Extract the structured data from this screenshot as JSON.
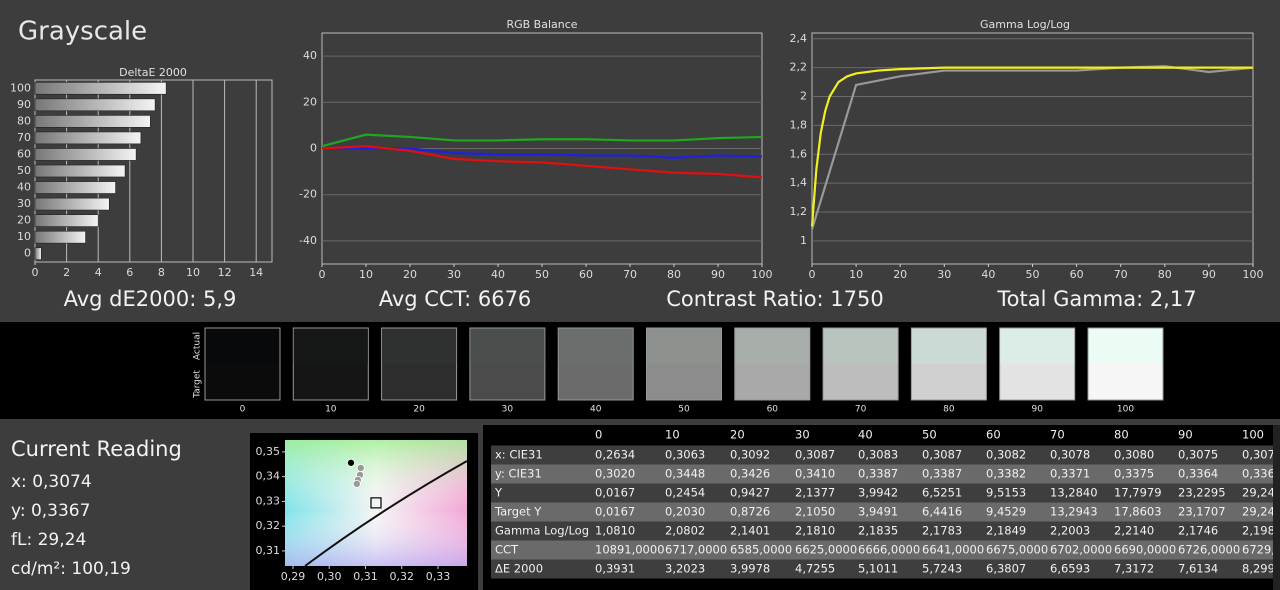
{
  "header": {
    "title": "Grayscale"
  },
  "chart_data": [
    {
      "type": "bar",
      "title": "DeltaE 2000",
      "categories": [
        "0",
        "10",
        "20",
        "30",
        "40",
        "50",
        "60",
        "70",
        "80",
        "90",
        "100"
      ],
      "values": [
        0.4,
        3.2,
        4.0,
        4.7,
        5.1,
        5.7,
        6.4,
        6.7,
        7.3,
        7.6,
        8.3
      ],
      "xlim": [
        0,
        15
      ],
      "xticks": [
        0,
        2,
        4,
        6,
        8,
        10,
        12,
        14
      ],
      "grid": true
    },
    {
      "type": "line",
      "title": "RGB Balance",
      "x": [
        0,
        10,
        20,
        30,
        40,
        50,
        60,
        70,
        80,
        90,
        100
      ],
      "series": [
        {
          "color": "#1fa81f",
          "values": [
            1,
            6,
            5,
            3.5,
            3.5,
            4,
            4,
            3.5,
            3.5,
            4.5,
            5
          ]
        },
        {
          "color": "#2020e0",
          "values": [
            0,
            0,
            0,
            -2,
            -2.5,
            -2.5,
            -3,
            -3,
            -4,
            -3,
            -3.5
          ]
        },
        {
          "color": "#e01010",
          "values": [
            0,
            1,
            -1,
            -4.5,
            -5.5,
            -6,
            -7.5,
            -9,
            -10.5,
            -11,
            -12.5
          ]
        }
      ],
      "xlim": [
        0,
        100
      ],
      "xticks": [
        0,
        10,
        20,
        30,
        40,
        50,
        60,
        70,
        80,
        90,
        100
      ],
      "ylim": [
        -50,
        50
      ],
      "yticks": [
        -40,
        -20,
        0,
        20,
        40
      ],
      "grid": true
    },
    {
      "type": "line",
      "title": "Gamma Log/Log",
      "series": [
        {
          "color": "#999999",
          "x": [
            0,
            10,
            20,
            30,
            40,
            50,
            60,
            70,
            80,
            90,
            100
          ],
          "values": [
            1.08,
            2.08,
            2.14,
            2.18,
            2.18,
            2.18,
            2.18,
            2.2,
            2.21,
            2.17,
            2.2
          ]
        },
        {
          "color": "#f0f020",
          "x": [
            0,
            1,
            2,
            3,
            4,
            5,
            6,
            8,
            10,
            15,
            20,
            30,
            40,
            50,
            60,
            70,
            80,
            90,
            100
          ],
          "values": [
            1.1,
            1.5,
            1.75,
            1.9,
            2.0,
            2.05,
            2.1,
            2.14,
            2.16,
            2.18,
            2.19,
            2.2,
            2.2,
            2.2,
            2.2,
            2.2,
            2.2,
            2.2,
            2.2
          ]
        }
      ],
      "xlim": [
        0,
        100
      ],
      "xticks": [
        0,
        10,
        20,
        30,
        40,
        50,
        60,
        70,
        80,
        90,
        100
      ],
      "ylim": [
        0.84,
        2.44
      ],
      "yticks": [
        1,
        {
          "value": 1.2,
          "label": "1,2"
        },
        {
          "value": 1.4,
          "label": "1,4"
        },
        {
          "value": 1.6,
          "label": "1,6"
        },
        {
          "value": 1.8,
          "label": "1,8"
        },
        2,
        {
          "value": 2.2,
          "label": "2,2"
        },
        {
          "value": 2.4,
          "label": "2,4"
        }
      ],
      "grid": true
    },
    {
      "type": "scatter",
      "series": [
        {
          "color": "#000000",
          "marker": "circle",
          "x": [
            0.306
          ],
          "values": [
            0.3456
          ]
        },
        {
          "color": "#9a9a9a",
          "marker": "circle",
          "x": [
            0.3087,
            0.3085,
            0.3079,
            0.3076
          ],
          "values": [
            0.3435,
            0.3407,
            0.3387,
            0.3371
          ]
        },
        {
          "color": "#000000",
          "marker": "square",
          "x": [
            0.3129
          ],
          "values": [
            0.3294
          ]
        }
      ],
      "xlim": [
        0.2878,
        0.338
      ],
      "xticks": [
        {
          "value": 0.29,
          "label": "0,29"
        },
        {
          "value": 0.3,
          "label": "0,30"
        },
        {
          "value": 0.31,
          "label": "0,31"
        },
        {
          "value": 0.32,
          "label": "0,32"
        },
        {
          "value": 0.33,
          "label": "0,33"
        }
      ],
      "ylim": [
        0.3039,
        0.3548
      ],
      "yticks": [
        {
          "value": 0.31,
          "label": "0,31"
        },
        {
          "value": 0.32,
          "label": "0,32"
        },
        {
          "value": 0.33,
          "label": "0,33"
        },
        {
          "value": 0.34,
          "label": "0,34"
        },
        {
          "value": 0.35,
          "label": "0,35"
        }
      ]
    }
  ],
  "summary": [
    "Avg dE2000: 5,9",
    "Avg CCT: 6676",
    "Contrast Ratio: 1750",
    "Total Gamma: 2,17"
  ],
  "swatches": {
    "actual_label": "Actual",
    "target_label": "Target",
    "items": [
      {
        "label": "0",
        "actual": "#08090b",
        "target": "#0b0b0b"
      },
      {
        "label": "10",
        "actual": "#151816",
        "target": "#151515"
      },
      {
        "label": "20",
        "actual": "#2e3130",
        "target": "#2d2d2d"
      },
      {
        "label": "30",
        "actual": "#4a4e4c",
        "target": "#4b4b4b"
      },
      {
        "label": "40",
        "actual": "#6a6e6c",
        "target": "#6b6b6b"
      },
      {
        "label": "50",
        "actual": "#8d928f",
        "target": "#8c8c8c"
      },
      {
        "label": "60",
        "actual": "#a8afab",
        "target": "#a9a9a9"
      },
      {
        "label": "70",
        "actual": "#b9c4bf",
        "target": "#bdbdbd"
      },
      {
        "label": "80",
        "actual": "#cbdad4",
        "target": "#d0d0d0"
      },
      {
        "label": "90",
        "actual": "#dcece6",
        "target": "#e3e3e3"
      },
      {
        "label": "100",
        "actual": "#ecfcf5",
        "target": "#f6f6f6"
      }
    ]
  },
  "reading": {
    "title": "Current Reading",
    "lines": [
      "x: 0,3074",
      "y: 0,3367",
      "fL: 29,24",
      "cd/m²: 100,19"
    ]
  },
  "table": {
    "columns": [
      "0",
      "10",
      "20",
      "30",
      "40",
      "50",
      "60",
      "70",
      "80",
      "90",
      "100"
    ],
    "rows": [
      [
        "x: CIE31",
        "0,2634",
        "0,3063",
        "0,3092",
        "0,3087",
        "0,3083",
        "0,3087",
        "0,3082",
        "0,3078",
        "0,3080",
        "0,3075",
        "0,307"
      ],
      [
        "y: CIE31",
        "0,3020",
        "0,3448",
        "0,3426",
        "0,3410",
        "0,3387",
        "0,3387",
        "0,3382",
        "0,3371",
        "0,3375",
        "0,3364",
        "0,336"
      ],
      [
        "Y",
        "0,0167",
        "0,2454",
        "0,9427",
        "2,1377",
        "3,9942",
        "6,5251",
        "9,5153",
        "13,2840",
        "17,7979",
        "23,2295",
        "29,24"
      ],
      [
        "Target Y",
        "0,0167",
        "0,2030",
        "0,8726",
        "2,1050",
        "3,9491",
        "6,4416",
        "9,4529",
        "13,2943",
        "17,8603",
        "23,1707",
        "29,24"
      ],
      [
        "Gamma Log/Log",
        "1,0810",
        "2,0802",
        "2,1401",
        "2,1810",
        "2,1835",
        "2,1783",
        "2,1849",
        "2,2003",
        "2,2140",
        "2,1746",
        "2,198"
      ],
      [
        "CCT",
        "10891,0000",
        "6717,0000",
        "6585,0000",
        "6625,0000",
        "6666,0000",
        "6641,0000",
        "6675,0000",
        "6702,0000",
        "6690,0000",
        "6726,0000",
        "6729,"
      ],
      [
        "ΔE 2000",
        "0,3931",
        "3,2023",
        "3,9978",
        "4,7255",
        "5,1011",
        "5,7243",
        "6,3807",
        "6,6593",
        "7,3172",
        "7,6134",
        "8,299"
      ]
    ]
  }
}
